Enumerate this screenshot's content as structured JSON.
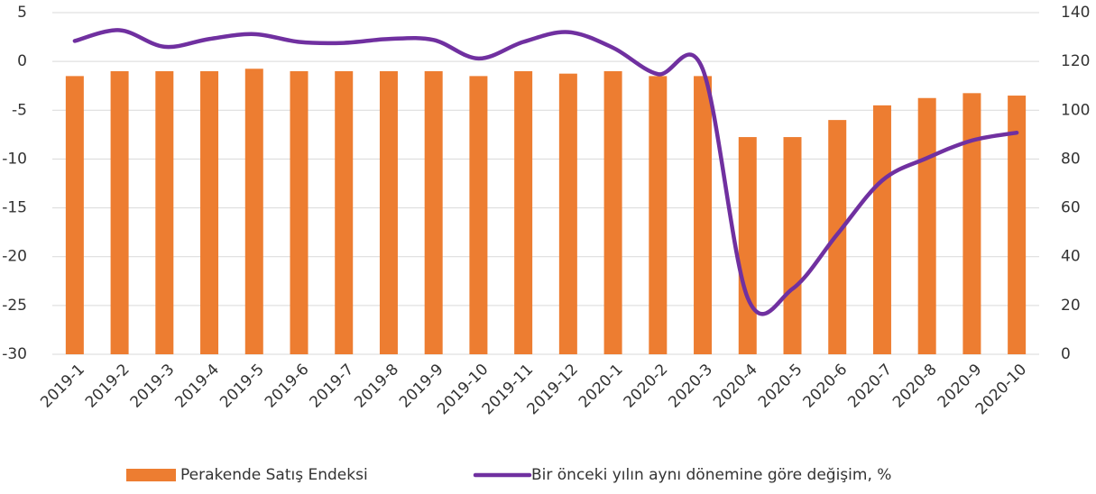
{
  "chart_data": {
    "type": "bar_line",
    "categories": [
      "2019-1",
      "2019-2",
      "2019-3",
      "2019-4",
      "2019-5",
      "2019-6",
      "2019-7",
      "2019-8",
      "2019-9",
      "2019-10",
      "2019-11",
      "2019-12",
      "2020-1",
      "2020-2",
      "2020-3",
      "2020-4",
      "2020-5",
      "2020-6",
      "2020-7",
      "2020-8",
      "2020-9",
      "2020-10"
    ],
    "series": [
      {
        "name": "Perakende Satış Endeksi",
        "type": "bar",
        "axis": "y2",
        "color": "#ed7d31",
        "values": [
          114,
          116,
          116,
          116,
          117,
          116,
          116,
          116,
          116,
          114,
          116,
          115,
          116,
          114,
          114,
          89,
          89,
          96,
          102,
          105,
          107,
          106
        ]
      },
      {
        "name": "Bir önceki yılın aynı dönemine göre değişim, %",
        "type": "line",
        "axis": "y",
        "color": "#7030a0",
        "values": [
          2.1,
          3.2,
          1.5,
          2.3,
          2.8,
          2.0,
          1.9,
          2.3,
          2.2,
          0.3,
          2.0,
          3.0,
          1.4,
          -1.3,
          -0.8,
          -24.2,
          -23.3,
          -17.7,
          -12.2,
          -9.9,
          -8.1,
          -7.3
        ]
      }
    ],
    "ylim": [
      -30,
      5
    ],
    "yticks": [
      5,
      0,
      -5,
      -10,
      -15,
      -20,
      -25,
      -30
    ],
    "y2lim": [
      0,
      140
    ],
    "y2ticks": [
      0,
      20,
      40,
      60,
      80,
      100,
      120,
      140
    ],
    "grid": true,
    "legend": "bottom"
  }
}
